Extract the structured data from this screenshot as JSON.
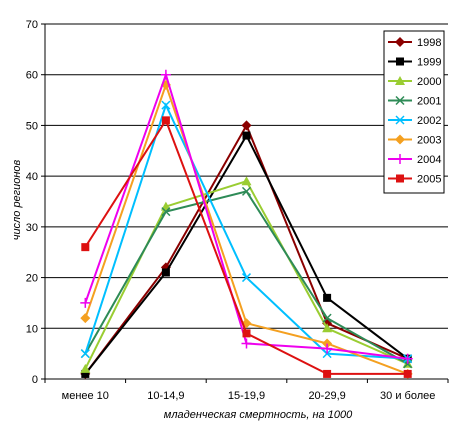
{
  "chart_data": {
    "type": "line",
    "title": "",
    "xlabel": "младенческая смертность, на 1000",
    "ylabel": "число регионов",
    "categories": [
      "менее 10",
      "10-14,9",
      "15-19,9",
      "20-29,9",
      "30 и более"
    ],
    "ylim": [
      0,
      70
    ],
    "yticks": [
      0,
      10,
      20,
      30,
      40,
      50,
      60,
      70
    ],
    "grid": "horizontal",
    "legend_position": "right",
    "series": [
      {
        "name": "1998",
        "color": "#8B0000",
        "marker": "diamond",
        "values": [
          1,
          22,
          50,
          11,
          4
        ]
      },
      {
        "name": "1999",
        "color": "#000000",
        "marker": "square",
        "values": [
          1,
          21,
          48,
          16,
          4
        ]
      },
      {
        "name": "2000",
        "color": "#9ACD32",
        "marker": "triangle",
        "values": [
          2,
          34,
          39,
          10,
          3
        ]
      },
      {
        "name": "2001",
        "color": "#2E8B57",
        "marker": "x",
        "values": [
          5,
          33,
          37,
          12,
          3
        ]
      },
      {
        "name": "2002",
        "color": "#00BFFF",
        "marker": "x",
        "values": [
          5,
          54,
          20,
          5,
          4
        ]
      },
      {
        "name": "2003",
        "color": "#F4A020",
        "marker": "diamond",
        "values": [
          12,
          58,
          11,
          7,
          1
        ]
      },
      {
        "name": "2004",
        "color": "#EE00EE",
        "marker": "plus",
        "values": [
          15,
          60,
          7,
          6,
          4
        ]
      },
      {
        "name": "2005",
        "color": "#DD1111",
        "marker": "square",
        "values": [
          26,
          51,
          9,
          1,
          1
        ]
      }
    ]
  }
}
